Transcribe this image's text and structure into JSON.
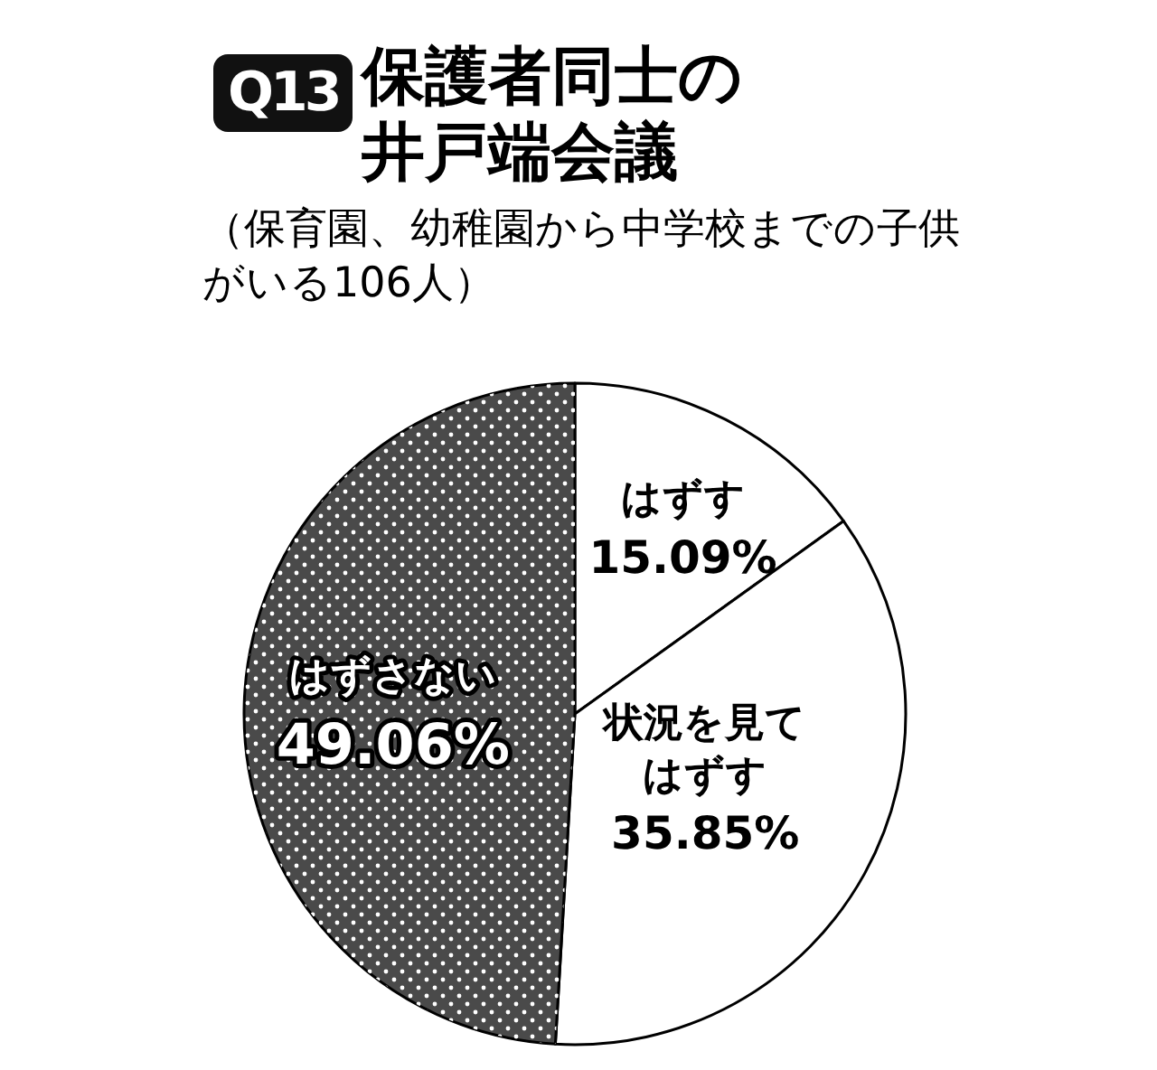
{
  "chart_data": {
    "type": "pie",
    "title": "保護者同士の井戸端会議",
    "subtitle": "（保育園、幼稚園から中学校までの子供がいる106人）",
    "annotations": [
      "Q13"
    ],
    "categories": [
      "はずす",
      "状況を見てはずす",
      "はずさない"
    ],
    "values": [
      15.09,
      35.85,
      49.06
    ],
    "colors": [
      "#ffffff",
      "#ffffff",
      "#4a4a4a"
    ],
    "value_labels": [
      "15.09%",
      "35.85%",
      "49.06%"
    ]
  }
}
